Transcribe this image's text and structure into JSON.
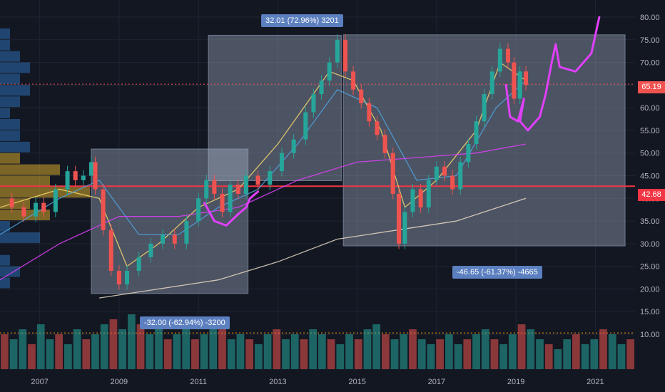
{
  "chart_data": {
    "type": "candlestick",
    "title": "",
    "xlabel": "",
    "ylabel": "",
    "x_ticks": [
      "2007",
      "2009",
      "2011",
      "2013",
      "2015",
      "2017",
      "2019",
      "2021"
    ],
    "y_ticks": [
      "10.00",
      "15.00",
      "20.00",
      "25.00",
      "30.00",
      "35.00",
      "40.00",
      "45.00",
      "50.00",
      "55.00",
      "60.00",
      "65.00",
      "70.00",
      "75.00",
      "80.00"
    ],
    "ylim": [
      5,
      82
    ],
    "xlim": [
      2006.0,
      2022.0
    ],
    "grid": true,
    "price_tags": [
      {
        "value": 65.19,
        "label": "65.19",
        "color": "#ef5350"
      },
      {
        "value": 42.68,
        "label": "42.68",
        "color": "#f23645"
      }
    ],
    "horizontal_lines": [
      {
        "value": 65.19,
        "style": "dotted",
        "color": "#ef5350"
      },
      {
        "value": 42.68,
        "style": "solid",
        "color": "#f23645"
      },
      {
        "value": 10.3,
        "style": "dotted",
        "color": "#ff9800"
      }
    ],
    "measurements": [
      {
        "label": "32.01 (72.96%) 3201",
        "x_start": 2011.25,
        "x_end": 2014.6,
        "y_low": 43.9,
        "y_high": 76.0
      },
      {
        "label": "-32.00 (-62.94%) -3200",
        "x_start": 2008.3,
        "x_end": 2012.25,
        "y_low": 19.0,
        "y_high": 50.9
      },
      {
        "label": "-46.65 (-61.37%) -4665",
        "x_start": 2014.65,
        "x_end": 2021.75,
        "y_low": 29.5,
        "y_high": 76.1
      }
    ],
    "price_path": [
      [
        2006.0,
        40
      ],
      [
        2006.3,
        38
      ],
      [
        2006.6,
        36
      ],
      [
        2006.9,
        39
      ],
      [
        2007.1,
        37
      ],
      [
        2007.4,
        42
      ],
      [
        2007.7,
        46
      ],
      [
        2007.9,
        44
      ],
      [
        2008.1,
        45
      ],
      [
        2008.3,
        48
      ],
      [
        2008.4,
        42
      ],
      [
        2008.6,
        33
      ],
      [
        2008.8,
        24
      ],
      [
        2009.0,
        21
      ],
      [
        2009.2,
        24
      ],
      [
        2009.5,
        27
      ],
      [
        2009.8,
        30
      ],
      [
        2010.1,
        32
      ],
      [
        2010.4,
        30
      ],
      [
        2010.7,
        35
      ],
      [
        2011.0,
        40
      ],
      [
        2011.2,
        44
      ],
      [
        2011.4,
        41
      ],
      [
        2011.6,
        37
      ],
      [
        2011.8,
        43
      ],
      [
        2012.0,
        41
      ],
      [
        2012.2,
        45
      ],
      [
        2012.5,
        43
      ],
      [
        2012.8,
        46
      ],
      [
        2013.1,
        50
      ],
      [
        2013.4,
        53
      ],
      [
        2013.7,
        59
      ],
      [
        2013.9,
        63
      ],
      [
        2014.1,
        66
      ],
      [
        2014.3,
        70
      ],
      [
        2014.5,
        75
      ],
      [
        2014.7,
        68
      ],
      [
        2014.9,
        64
      ],
      [
        2015.1,
        61
      ],
      [
        2015.3,
        57
      ],
      [
        2015.5,
        54
      ],
      [
        2015.7,
        50
      ],
      [
        2015.9,
        41
      ],
      [
        2016.05,
        30
      ],
      [
        2016.2,
        37
      ],
      [
        2016.4,
        42
      ],
      [
        2016.6,
        38
      ],
      [
        2016.8,
        44
      ],
      [
        2017.0,
        47
      ],
      [
        2017.2,
        45
      ],
      [
        2017.4,
        42
      ],
      [
        2017.6,
        48
      ],
      [
        2017.8,
        52
      ],
      [
        2018.0,
        57
      ],
      [
        2018.2,
        63
      ],
      [
        2018.4,
        68
      ],
      [
        2018.6,
        73
      ],
      [
        2018.8,
        70
      ],
      [
        2018.95,
        62
      ],
      [
        2019.1,
        68
      ],
      [
        2019.25,
        65
      ]
    ],
    "moving_averages": [
      {
        "color": "#f5d76e",
        "values": [
          [
            2006.0,
            38
          ],
          [
            2007.5,
            42
          ],
          [
            2008.5,
            40
          ],
          [
            2009.2,
            25
          ],
          [
            2010,
            30
          ],
          [
            2011,
            38
          ],
          [
            2012,
            42
          ],
          [
            2013,
            52
          ],
          [
            2014.3,
            68
          ],
          [
            2014.9,
            66
          ],
          [
            2015.6,
            55
          ],
          [
            2016.2,
            38
          ],
          [
            2017,
            44
          ],
          [
            2018,
            55
          ],
          [
            2018.6,
            70
          ],
          [
            2019.25,
            66
          ]
        ]
      },
      {
        "color": "#4fa3e0",
        "values": [
          [
            2006.0,
            32
          ],
          [
            2007.5,
            40
          ],
          [
            2008.5,
            44
          ],
          [
            2009.5,
            32
          ],
          [
            2010.5,
            32
          ],
          [
            2011.5,
            38
          ],
          [
            2012.5,
            42
          ],
          [
            2013.5,
            52
          ],
          [
            2014.5,
            64
          ],
          [
            2015.5,
            60
          ],
          [
            2016.5,
            44
          ],
          [
            2017.5,
            45
          ],
          [
            2018.5,
            60
          ],
          [
            2019.25,
            66
          ]
        ]
      },
      {
        "color": "#e040fb",
        "values": [
          [
            2006.0,
            22
          ],
          [
            2007.5,
            30
          ],
          [
            2009,
            36
          ],
          [
            2010.5,
            36
          ],
          [
            2012,
            38
          ],
          [
            2013.5,
            44
          ],
          [
            2015,
            48
          ],
          [
            2016.5,
            49
          ],
          [
            2018,
            50
          ],
          [
            2019.25,
            52
          ]
        ]
      },
      {
        "color": "#e8d9c4",
        "values": [
          [
            2008.5,
            18
          ],
          [
            2010,
            20
          ],
          [
            2011.5,
            22
          ],
          [
            2013,
            26
          ],
          [
            2014.5,
            31
          ],
          [
            2016,
            33
          ],
          [
            2017.5,
            35
          ],
          [
            2019.25,
            40
          ]
        ]
      }
    ],
    "volume": [
      7,
      6,
      8,
      5,
      9,
      6,
      7,
      5,
      8,
      6,
      7,
      9,
      10,
      8,
      11,
      9,
      7,
      8,
      6,
      7,
      8,
      6,
      7,
      9,
      8,
      6,
      7,
      6,
      5,
      7,
      8,
      6,
      7,
      6,
      8,
      7,
      6,
      5,
      7,
      6,
      8,
      9,
      7,
      6,
      7,
      8,
      6,
      5,
      6,
      7,
      5,
      6,
      7,
      8,
      6,
      5,
      7,
      9,
      8,
      6,
      5,
      4,
      6,
      7,
      5,
      6,
      8,
      7,
      5,
      6
    ]
  }
}
